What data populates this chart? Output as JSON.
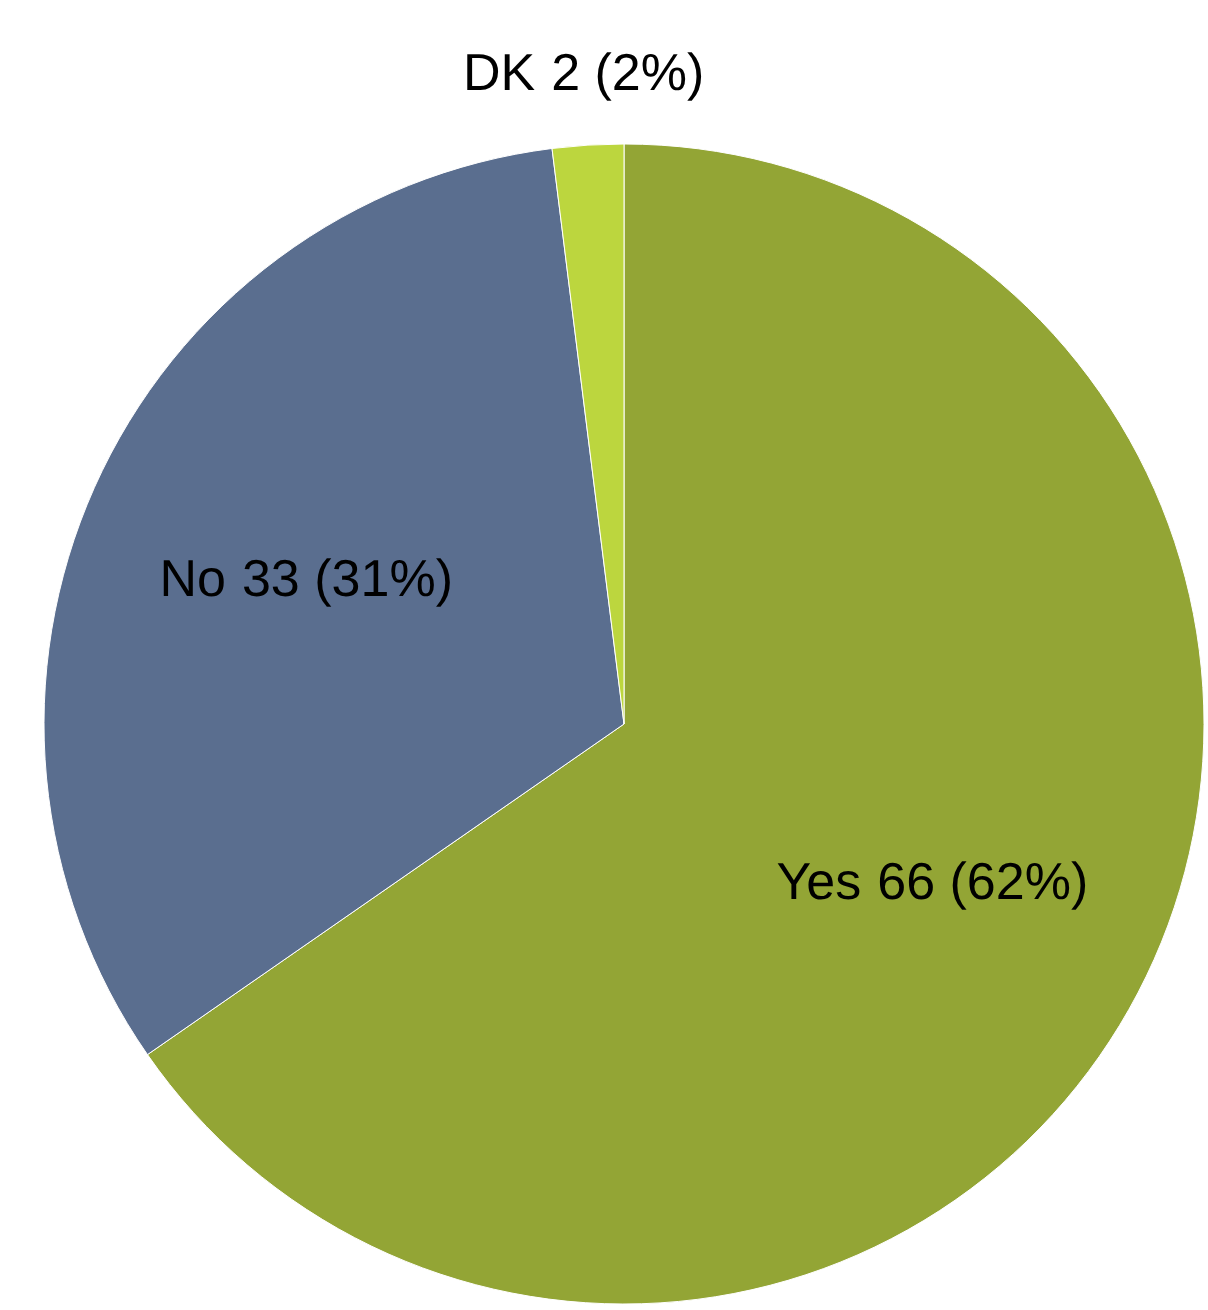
{
  "chart_data": {
    "type": "pie",
    "categories": [
      "Yes",
      "No",
      "DK"
    ],
    "values": [
      66,
      33,
      2
    ],
    "colors": [
      "#93a535",
      "#5a6e8f",
      "#bcd63e"
    ],
    "data_labels": true,
    "annotations": [
      "(62%)",
      "(31%)",
      "(2%)"
    ],
    "legend": false
  }
}
